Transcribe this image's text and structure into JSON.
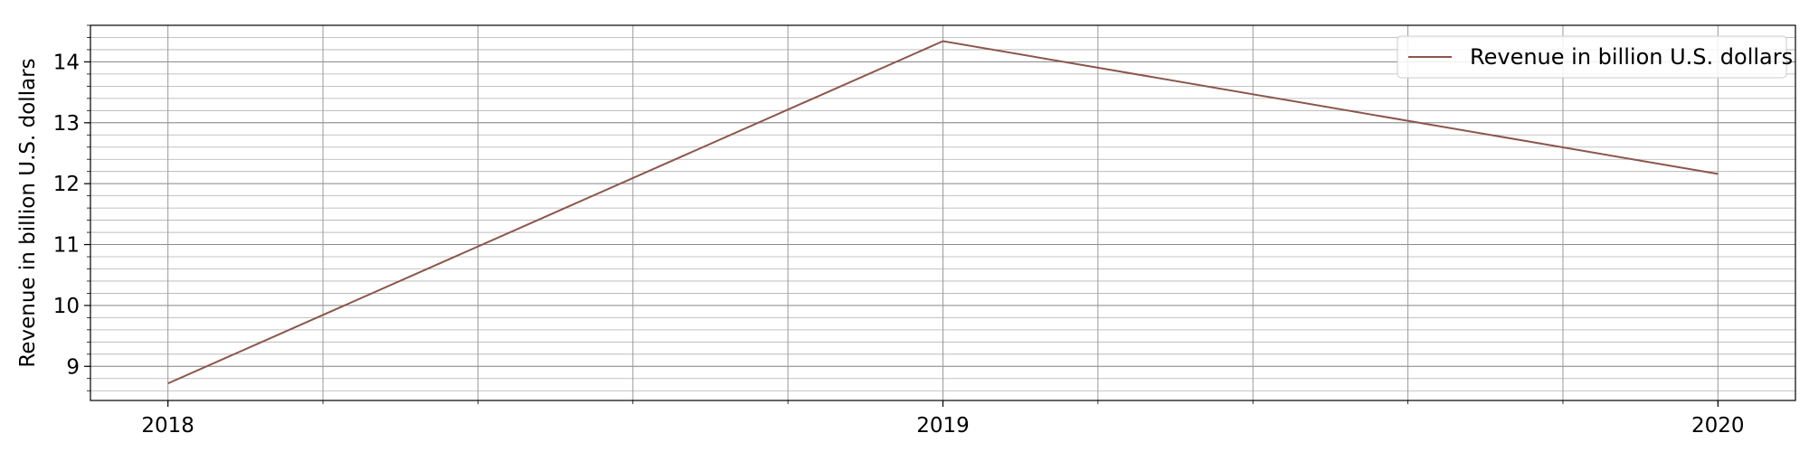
{
  "chart_data": {
    "type": "line",
    "title": "",
    "xlabel": "",
    "ylabel": "Revenue in billion U.S. dollars",
    "categories": [
      "2018",
      "2019",
      "2020"
    ],
    "x": [
      2018,
      2019,
      2020
    ],
    "xlim": [
      2017.9,
      2020.1
    ],
    "ylim": [
      8.44,
      14.6
    ],
    "yticks": [
      9,
      10,
      11,
      12,
      13,
      14
    ],
    "series": [
      {
        "name": "Revenue in billion U.S. dollars",
        "values": [
          8.72,
          14.34,
          12.16
        ],
        "color": "#8c564b"
      }
    ],
    "grid": true,
    "minor_grid": true,
    "legend_position": "top-right"
  }
}
